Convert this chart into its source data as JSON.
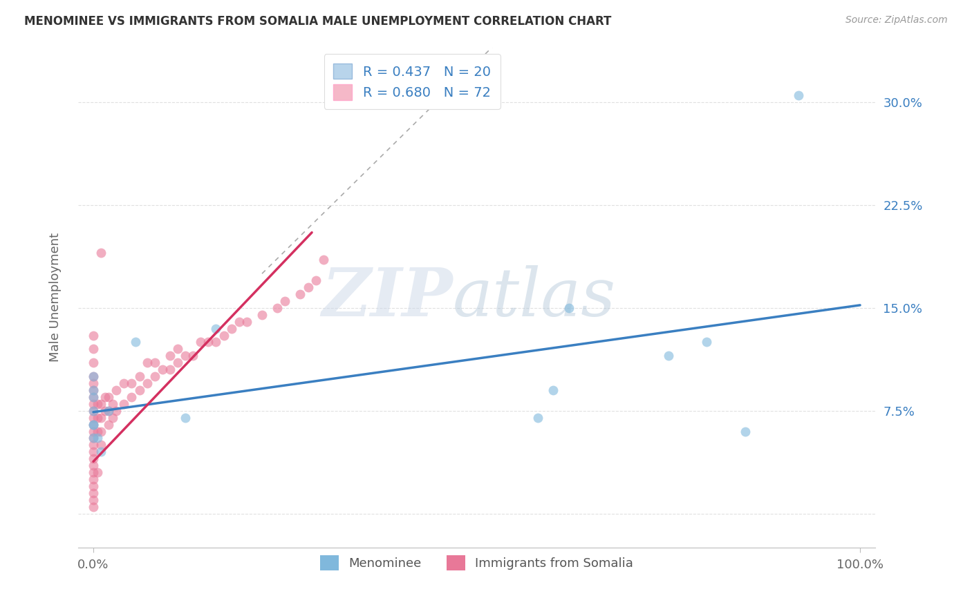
{
  "title": "MENOMINEE VS IMMIGRANTS FROM SOMALIA MALE UNEMPLOYMENT CORRELATION CHART",
  "source": "Source: ZipAtlas.com",
  "ylabel": "Male Unemployment",
  "xlim": [
    -0.02,
    1.02
  ],
  "ylim": [
    -0.025,
    0.34
  ],
  "legend": {
    "series1_label": "R = 0.437   N = 20",
    "series2_label": "R = 0.680   N = 72",
    "series1_color": "#b8d4eb",
    "series2_color": "#f5b8c8"
  },
  "menominee_x": [
    0.0,
    0.0,
    0.0,
    0.0,
    0.0,
    0.0,
    0.0,
    0.005,
    0.01,
    0.02,
    0.055,
    0.12,
    0.16,
    0.58,
    0.6,
    0.62,
    0.75,
    0.8,
    0.85,
    0.92
  ],
  "menominee_y": [
    0.055,
    0.065,
    0.075,
    0.085,
    0.09,
    0.1,
    0.065,
    0.055,
    0.045,
    0.075,
    0.125,
    0.07,
    0.135,
    0.07,
    0.09,
    0.15,
    0.115,
    0.125,
    0.06,
    0.305
  ],
  "somalia_x": [
    0.0,
    0.0,
    0.0,
    0.0,
    0.0,
    0.0,
    0.0,
    0.0,
    0.0,
    0.0,
    0.0,
    0.0,
    0.0,
    0.0,
    0.0,
    0.0,
    0.0,
    0.0,
    0.0,
    0.0,
    0.005,
    0.005,
    0.005,
    0.01,
    0.01,
    0.01,
    0.01,
    0.015,
    0.015,
    0.02,
    0.02,
    0.02,
    0.025,
    0.025,
    0.03,
    0.03,
    0.04,
    0.04,
    0.05,
    0.05,
    0.06,
    0.06,
    0.07,
    0.07,
    0.08,
    0.08,
    0.09,
    0.1,
    0.1,
    0.11,
    0.11,
    0.12,
    0.13,
    0.14,
    0.15,
    0.16,
    0.17,
    0.18,
    0.19,
    0.2,
    0.22,
    0.24,
    0.25,
    0.27,
    0.28,
    0.29,
    0.3,
    0.0,
    0.0,
    0.0,
    0.005,
    0.01
  ],
  "somalia_y": [
    0.045,
    0.055,
    0.065,
    0.075,
    0.085,
    0.04,
    0.05,
    0.06,
    0.07,
    0.08,
    0.09,
    0.1,
    0.03,
    0.02,
    0.035,
    0.025,
    0.015,
    0.01,
    0.005,
    0.095,
    0.06,
    0.07,
    0.08,
    0.05,
    0.06,
    0.07,
    0.08,
    0.075,
    0.085,
    0.065,
    0.075,
    0.085,
    0.07,
    0.08,
    0.075,
    0.09,
    0.08,
    0.095,
    0.085,
    0.095,
    0.09,
    0.1,
    0.095,
    0.11,
    0.1,
    0.11,
    0.105,
    0.105,
    0.115,
    0.11,
    0.12,
    0.115,
    0.115,
    0.125,
    0.125,
    0.125,
    0.13,
    0.135,
    0.14,
    0.14,
    0.145,
    0.15,
    0.155,
    0.16,
    0.165,
    0.17,
    0.185,
    0.13,
    0.12,
    0.11,
    0.03,
    0.19
  ],
  "menominee_color": "#80b8dc",
  "somalia_color": "#e87898",
  "dot_size": 100,
  "dot_alpha": 0.6,
  "trend_menominee_color": "#3a7fc1",
  "trend_somalia_color": "#d43060",
  "trend_menominee_x0": 0.0,
  "trend_menominee_x1": 1.0,
  "trend_menominee_y0": 0.074,
  "trend_menominee_y1": 0.152,
  "trend_somalia_x0": 0.0,
  "trend_somalia_x1": 0.285,
  "trend_somalia_y0": 0.038,
  "trend_somalia_y1": 0.205,
  "trend_somalia_dash_x0": 0.22,
  "trend_somalia_dash_x1": 0.52,
  "trend_somalia_dash_y0": 0.175,
  "trend_somalia_dash_y1": 0.34,
  "background_color": "#ffffff",
  "grid_color": "#cccccc",
  "title_color": "#333333",
  "axis_label_color": "#555555",
  "ytick_vals": [
    0.0,
    0.075,
    0.15,
    0.225,
    0.3
  ],
  "ytick_labels": [
    "",
    "7.5%",
    "15.0%",
    "22.5%",
    "30.0%"
  ]
}
